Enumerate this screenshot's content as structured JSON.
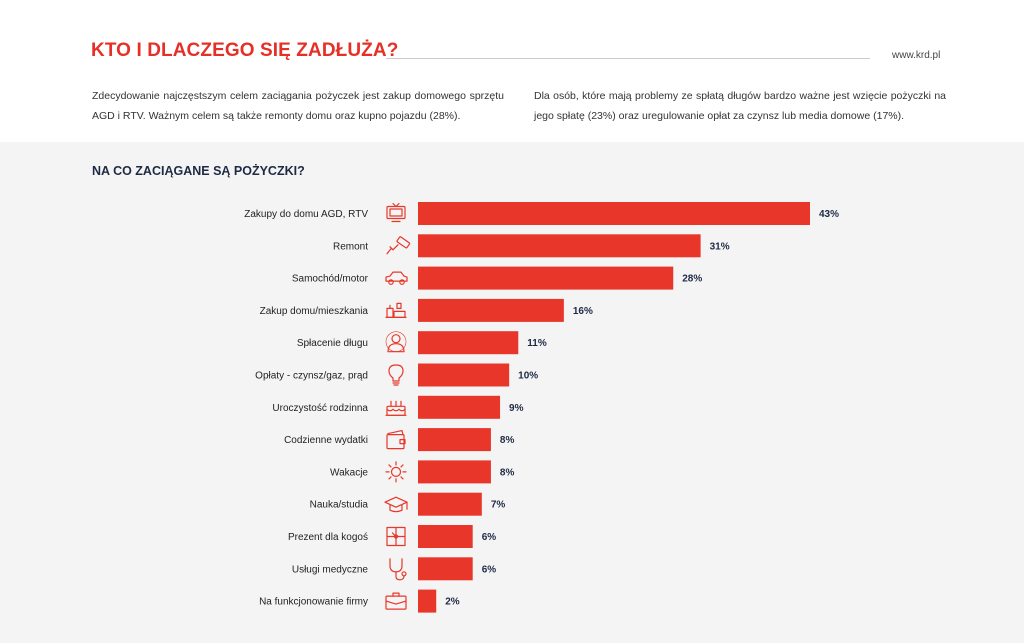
{
  "header": {
    "title": "KTO I DLACZEGO SIĘ ZADŁUŻA?",
    "site": "www.krd.pl"
  },
  "intro": {
    "left": "Zdecydowanie najczęstszym celem zaciągania pożyczek jest zakup domowego sprzętu AGD i RTV. Ważnym celem są także remonty domu oraz kupno pojazdu (28%).",
    "right": "Dla osób, które mają problemy ze spłatą długów bardzo ważne jest wzięcie pożyczki na jego spłatę (23%) oraz uregulowanie opłat za czynsz lub media domowe (17%)."
  },
  "colors": {
    "accent": "#e63027",
    "bar": "#e8372a",
    "navy": "#1e2a44",
    "panel": "#f4f4f4"
  },
  "chart_data": {
    "type": "bar",
    "orientation": "horizontal",
    "title": "NA CO ZACIĄGANE SĄ POŻYCZKI?",
    "xlabel": "",
    "ylabel": "",
    "xlim": [
      0,
      43
    ],
    "unit": "%",
    "grid": false,
    "legend": "none",
    "categories": [
      "Zakupy do domu AGD, RTV",
      "Remont",
      "Samochód/motor",
      "Zakup domu/mieszkania",
      "Spłacenie długu",
      "Opłaty - czynsz/gaz, prąd",
      "Uroczystość rodzinna",
      "Codzienne wydatki",
      "Wakacje",
      "Nauka/studia",
      "Prezent dla kogoś",
      "Usługi medyczne",
      "Na funkcjonowanie firmy"
    ],
    "values": [
      43,
      31,
      28,
      16,
      11,
      10,
      9,
      8,
      8,
      7,
      6,
      6,
      2
    ],
    "value_labels": [
      "43%",
      "31%",
      "28%",
      "16%",
      "11%",
      "10%",
      "9%",
      "8%",
      "8%",
      "7%",
      "6%",
      "6%",
      "2%"
    ],
    "icons": [
      "tv-icon",
      "paint-roller-icon",
      "car-icon",
      "house-icon",
      "person-icon",
      "lightbulb-icon",
      "cake-icon",
      "wallet-icon",
      "sun-icon",
      "graduation-cap-icon",
      "gift-icon",
      "stethoscope-icon",
      "briefcase-icon"
    ]
  }
}
